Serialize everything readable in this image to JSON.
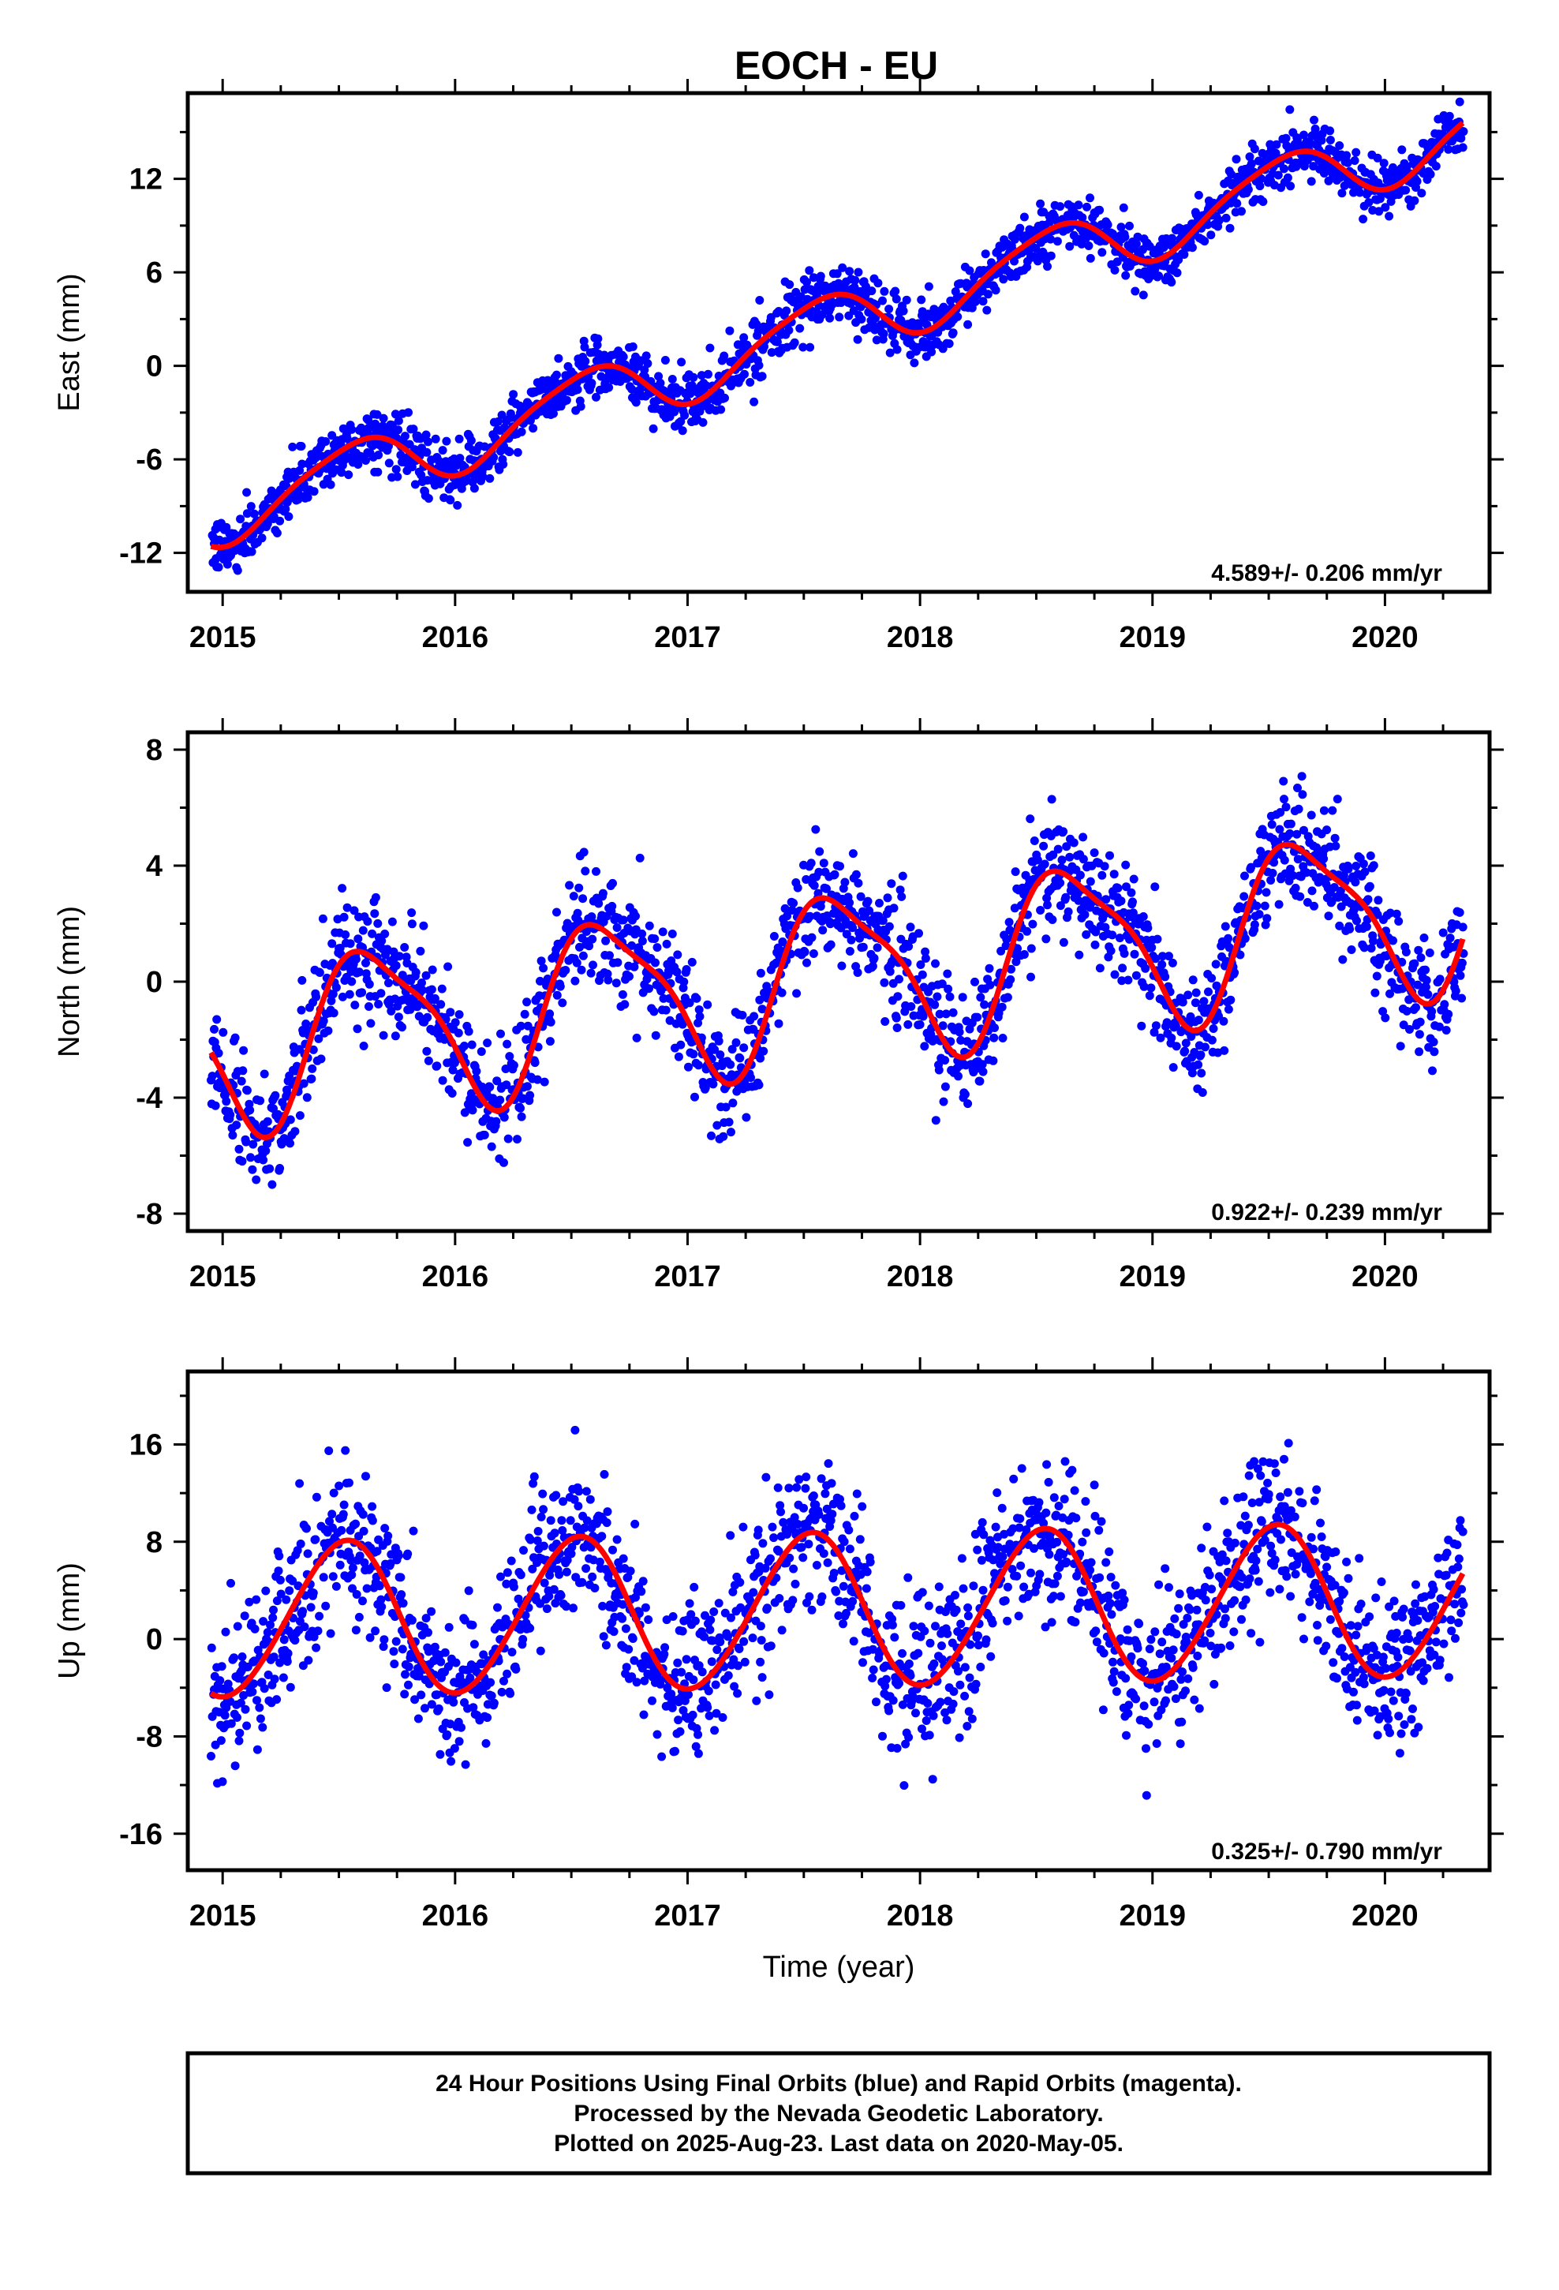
{
  "figure": {
    "title": "EOCH - EU",
    "footer": [
      "24 Hour Positions Using Final Orbits (blue) and Rapid Orbits (magenta).",
      "Processed by the Nevada Geodetic Laboratory.",
      "Plotted on 2025-Aug-23. Last data on 2020-May-05."
    ]
  },
  "colors": {
    "points": "#0000ff",
    "fit": "#ff0000",
    "axis": "#000000"
  },
  "chart_data": [
    {
      "type": "scatter",
      "ylabel": "East (mm)",
      "xlabel": "",
      "xlim": [
        2014.85,
        2020.45
      ],
      "ylim": [
        -14.5,
        17.5
      ],
      "xticks": [
        2015,
        2016,
        2017,
        2018,
        2019,
        2020
      ],
      "yticks": [
        -12,
        -6,
        0,
        6,
        12
      ],
      "rate_label": "4.589+/- 0.206 mm/yr",
      "fit_model": {
        "t_start": 2014.95,
        "t_end": 2020.34,
        "offset": -9.4,
        "trend": 4.589,
        "annual_amp": 2.0,
        "annual_phase": 0.3,
        "semi_amp": 0.35,
        "semi_phase": 0.1,
        "scatter": 0.9
      },
      "grid": false
    },
    {
      "type": "scatter",
      "ylabel": "North (mm)",
      "xlabel": "",
      "xlim": [
        2014.85,
        2020.45
      ],
      "ylim": [
        -8.6,
        8.6
      ],
      "xticks": [
        2015,
        2016,
        2017,
        2018,
        2019,
        2020
      ],
      "yticks": [
        -8,
        -4,
        0,
        4,
        8
      ],
      "rate_label": "0.922+/- 0.239 mm/yr",
      "fit_model": {
        "t_start": 2014.95,
        "t_end": 2020.34,
        "offset": -2.2,
        "trend": 0.922,
        "annual_amp": 2.8,
        "annual_phase": 0.4,
        "semi_amp": 0.7,
        "semi_phase": 0.35,
        "scatter": 1.0
      },
      "grid": false
    },
    {
      "type": "scatter",
      "ylabel": "Up (mm)",
      "xlabel": "Time (year)",
      "xlim": [
        2014.85,
        2020.45
      ],
      "ylim": [
        -19,
        22
      ],
      "xticks": [
        2015,
        2016,
        2017,
        2018,
        2019,
        2020
      ],
      "yticks": [
        -16,
        -8,
        0,
        8,
        16
      ],
      "rate_label": "0.325+/- 0.790 mm/yr",
      "fit_model": {
        "t_start": 2014.95,
        "t_end": 2020.34,
        "offset": 1.5,
        "trend": 0.325,
        "annual_amp": 6.3,
        "annual_phase": 0.27,
        "semi_amp": 0.4,
        "semi_phase": 0.0,
        "scatter": 3.2
      },
      "grid": false
    }
  ]
}
